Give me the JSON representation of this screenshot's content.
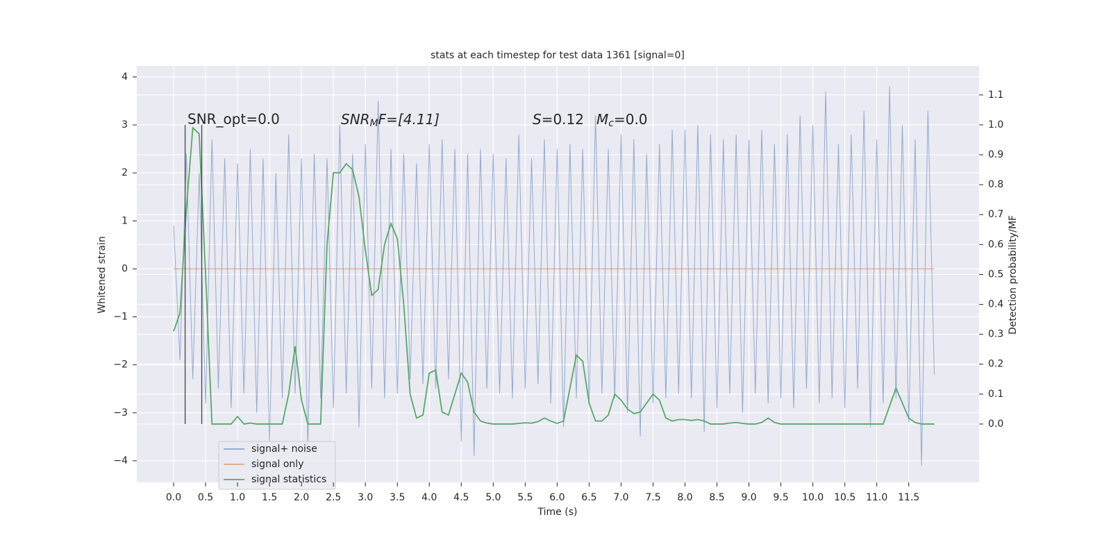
{
  "chart_data": {
    "type": "line",
    "title": "stats at each timestep for test data 1361 [signal=0]",
    "xlabel": "Time (s)",
    "ylabel": "Whitened strain",
    "y2label": "Detection probability/MF",
    "annotations": [
      {
        "text": "SNR_opt=0.0"
      },
      {
        "base": "SNR",
        "sub": "M",
        "rest": "F=[4.11]"
      },
      {
        "base": "S",
        "rest": "=0.12"
      },
      {
        "base": "M",
        "sub": "c",
        "rest": "=0.0"
      }
    ],
    "vlines": [
      0.18,
      0.44
    ],
    "xlim": [
      -0.576,
      12.6
    ],
    "ylim": [
      -4.45,
      4.23
    ],
    "y2lim": [
      -0.195,
      1.197
    ],
    "xticks": [
      {
        "value": 0,
        "label": "0.0"
      },
      0.5,
      {
        "value": 1,
        "label": "1.0"
      },
      1.5,
      {
        "value": 2,
        "label": "2.0"
      },
      2.5,
      {
        "value": 3,
        "label": "3.0"
      },
      3.5,
      {
        "value": 4,
        "label": "4.0"
      },
      4.5,
      {
        "value": 5,
        "label": "5.0"
      },
      5.5,
      {
        "value": 6,
        "label": "6.0"
      },
      6.5,
      {
        "value": 7,
        "label": "7.0"
      },
      7.5,
      {
        "value": 8,
        "label": "8.0"
      },
      8.5,
      {
        "value": 9,
        "label": "9.0"
      },
      9.5,
      {
        "value": 10,
        "label": "10.0"
      },
      10.5,
      {
        "value": 11,
        "label": "11.0"
      },
      11.5
    ],
    "yticks": [
      {
        "value": -4,
        "label": "−4"
      },
      {
        "value": -3,
        "label": "−3"
      },
      {
        "value": -2,
        "label": "−2"
      },
      {
        "value": -1,
        "label": "−1"
      },
      0,
      1,
      2,
      3,
      4
    ],
    "y2ticks": [
      {
        "value": 0,
        "label": "0.0"
      },
      0.1,
      0.2,
      0.3,
      0.4,
      0.5,
      0.6,
      0.7,
      0.8,
      0.9,
      {
        "value": 1,
        "label": "1.0"
      },
      1.1
    ],
    "grid": true,
    "legend": "lower left",
    "x": [
      0.0,
      0.1,
      0.2,
      0.3,
      0.4,
      0.5,
      0.6,
      0.7,
      0.8,
      0.9,
      1.0,
      1.1,
      1.2,
      1.3,
      1.4,
      1.5,
      1.6,
      1.7,
      1.8,
      1.9,
      2.0,
      2.1,
      2.2,
      2.3,
      2.4,
      2.5,
      2.6,
      2.7,
      2.8,
      2.9,
      3.0,
      3.1,
      3.2,
      3.3,
      3.4,
      3.5,
      3.6,
      3.7,
      3.8,
      3.9,
      4.0,
      4.1,
      4.2,
      4.3,
      4.4,
      4.5,
      4.6,
      4.7,
      4.8,
      4.9,
      5.0,
      5.1,
      5.2,
      5.3,
      5.4,
      5.5,
      5.6,
      5.7,
      5.8,
      5.9,
      6.0,
      6.1,
      6.2,
      6.3,
      6.4,
      6.5,
      6.6,
      6.7,
      6.8,
      6.9,
      7.0,
      7.1,
      7.2,
      7.3,
      7.4,
      7.5,
      7.6,
      7.7,
      7.8,
      7.9,
      8.0,
      8.1,
      8.2,
      8.3,
      8.4,
      8.5,
      8.6,
      8.7,
      8.8,
      8.9,
      9.0,
      9.1,
      9.2,
      9.3,
      9.4,
      9.5,
      9.6,
      9.7,
      9.8,
      9.9,
      10.0,
      10.1,
      10.2,
      10.3,
      10.4,
      10.5,
      10.6,
      10.7,
      10.8,
      10.9,
      11.0,
      11.1,
      11.2,
      11.3,
      11.4,
      11.5,
      11.6,
      11.7,
      11.8,
      11.9
    ],
    "series": [
      {
        "name": "signal+ noise",
        "color": "#4c72b0",
        "axis": "y",
        "values": [
          0.9,
          -1.9,
          2.4,
          -2.3,
          2.0,
          -2.8,
          2.7,
          -2.5,
          2.3,
          -2.9,
          2.2,
          -2.6,
          2.5,
          -3.0,
          2.3,
          -3.6,
          2.0,
          -2.7,
          2.8,
          -2.6,
          2.3,
          -3.7,
          2.4,
          -2.7,
          2.3,
          -2.9,
          3.0,
          -2.6,
          2.4,
          -3.3,
          2.6,
          -2.5,
          3.5,
          -2.7,
          2.5,
          -2.6,
          2.4,
          -2.3,
          2.2,
          -2.4,
          2.6,
          -2.5,
          2.7,
          -2.3,
          2.5,
          -3.6,
          2.4,
          -3.9,
          2.5,
          -2.5,
          2.4,
          -2.6,
          2.3,
          -2.7,
          2.8,
          -2.5,
          2.3,
          -2.4,
          2.7,
          -2.8,
          2.5,
          -3.3,
          2.6,
          -2.7,
          2.5,
          -2.8,
          3.2,
          -2.6,
          2.5,
          -2.7,
          2.8,
          -3.0,
          2.7,
          -3.5,
          2.4,
          -2.8,
          2.6,
          -2.7,
          2.9,
          -2.6,
          2.9,
          -2.7,
          3.0,
          -3.4,
          2.8,
          -2.9,
          2.7,
          -2.6,
          2.8,
          -3.0,
          2.7,
          -2.6,
          2.9,
          -2.8,
          2.6,
          -2.7,
          2.8,
          -2.9,
          3.2,
          -2.5,
          3.0,
          -2.8,
          3.7,
          -2.7,
          2.6,
          -2.9,
          2.8,
          -2.5,
          3.3,
          -3.3,
          2.7,
          -2.8,
          3.8,
          -2.7,
          3.0,
          -3.2,
          2.7,
          -4.1,
          3.3,
          -2.2
        ]
      },
      {
        "name": "signal only",
        "color": "#dd8452",
        "axis": "y",
        "values": [
          0,
          0,
          0,
          0,
          0,
          0,
          0,
          0,
          0,
          0,
          0,
          0,
          0,
          0,
          0,
          0,
          0,
          0,
          0,
          0,
          0,
          0,
          0,
          0,
          0,
          0,
          0,
          0,
          0,
          0,
          0,
          0,
          0,
          0,
          0,
          0,
          0,
          0,
          0,
          0,
          0,
          0,
          0,
          0,
          0,
          0,
          0,
          0,
          0,
          0,
          0,
          0,
          0,
          0,
          0,
          0,
          0,
          0,
          0,
          0,
          0,
          0,
          0,
          0,
          0,
          0,
          0,
          0,
          0,
          0,
          0,
          0,
          0,
          0,
          0,
          0,
          0,
          0,
          0,
          0,
          0,
          0,
          0,
          0,
          0,
          0,
          0,
          0,
          0,
          0,
          0,
          0,
          0,
          0,
          0,
          0,
          0,
          0,
          0,
          0,
          0,
          0,
          0,
          0,
          0,
          0,
          0,
          0,
          0,
          0,
          0,
          0,
          0,
          0,
          0,
          0,
          0,
          0,
          0,
          0
        ]
      },
      {
        "name": "signal statistics",
        "color": "#55a868",
        "axis": "y2",
        "values": [
          0.31,
          0.37,
          0.72,
          0.99,
          0.97,
          0.5,
          0.0,
          0.0,
          0.0,
          0.0,
          0.025,
          0.0,
          0.003,
          0.0,
          0.0,
          0.0,
          0.0,
          0.0,
          0.1,
          0.26,
          0.08,
          0.0,
          0.0,
          0.0,
          0.6,
          0.84,
          0.84,
          0.87,
          0.85,
          0.76,
          0.58,
          0.43,
          0.45,
          0.6,
          0.67,
          0.62,
          0.4,
          0.1,
          0.02,
          0.03,
          0.17,
          0.18,
          0.04,
          0.03,
          0.1,
          0.17,
          0.14,
          0.04,
          0.01,
          0.003,
          0.0,
          0.0,
          0.0,
          0.0,
          0.002,
          0.004,
          0.003,
          0.008,
          0.02,
          0.01,
          0.002,
          0.01,
          0.12,
          0.23,
          0.21,
          0.07,
          0.01,
          0.01,
          0.03,
          0.1,
          0.08,
          0.05,
          0.035,
          0.04,
          0.07,
          0.1,
          0.08,
          0.02,
          0.01,
          0.015,
          0.015,
          0.012,
          0.015,
          0.01,
          0.0,
          0.0,
          0.0,
          0.003,
          0.005,
          0.002,
          0.0,
          0.0,
          0.005,
          0.02,
          0.005,
          0.0,
          0.0,
          0.0,
          0.0,
          0.0,
          0.0,
          0.0,
          0.0,
          0.0,
          0.0,
          0.0,
          0.0,
          0.0,
          0.0,
          0.0,
          0.0,
          0.0,
          0.06,
          0.12,
          0.07,
          0.02,
          0.005,
          0.0,
          0.0,
          0.0
        ]
      }
    ]
  }
}
